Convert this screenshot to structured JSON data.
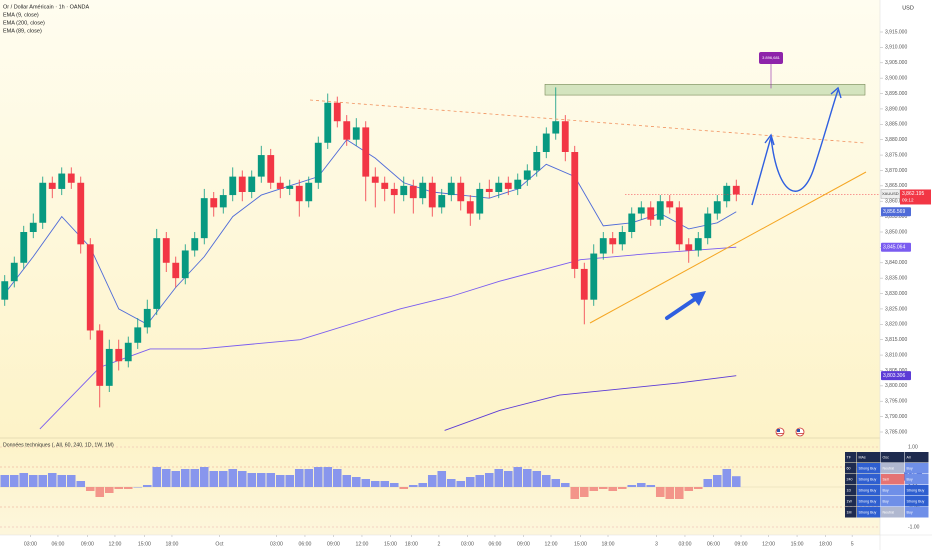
{
  "chart_data": [
    {
      "type": "candlestick",
      "title": "Or / Dollar Américain · 1h · OANDA",
      "currency": "USD",
      "x": [
        0.5,
        1.5,
        2.5,
        3.5,
        4.5,
        5.5,
        6.5,
        7.5,
        8.5,
        9.5,
        10.5,
        11.5,
        12.5,
        13.5,
        14.5,
        15.5,
        16.5,
        17.5,
        18.5,
        19.5,
        20.5,
        21.5,
        22.5,
        23.5,
        24.5,
        25.5,
        26.5,
        27.5,
        28.5,
        29.5,
        30.5,
        31.5,
        32.5,
        33.5,
        34.5,
        35.5,
        36.5,
        37.5,
        38.5,
        39.5,
        40.5,
        41.5,
        42.5,
        43.5,
        44.5,
        45.5,
        46.5,
        47.5,
        48.5,
        49.5,
        50.5,
        51.5,
        52.5,
        53.5,
        54.5,
        55.5,
        56.5,
        57.5,
        58.5,
        59.5,
        60.5,
        61.5,
        62.5,
        63.5,
        64.5,
        65.5,
        66.5,
        67.5,
        68.5,
        69.5,
        70.5,
        71.5,
        72.5,
        73.5,
        74.5,
        75.5,
        76.5,
        77.5
      ],
      "open": [
        3828,
        3834,
        3840,
        3850,
        3853,
        3866,
        3864,
        3869,
        3866,
        3846,
        3818,
        3800,
        3812,
        3808,
        3814,
        3819,
        3825,
        3848,
        3840,
        3835,
        3844,
        3848,
        3861,
        3858,
        3862,
        3868,
        3863,
        3868,
        3875,
        3866,
        3864,
        3865,
        3860,
        3866,
        3879,
        3892,
        3886,
        3880,
        3884,
        3868,
        3866,
        3864,
        3862,
        3865,
        3861,
        3866,
        3858,
        3862,
        3866,
        3860,
        3856,
        3864,
        3863,
        3866,
        3864,
        3867,
        3870,
        3876,
        3882,
        3886,
        3876,
        3838,
        3828,
        3843,
        3848,
        3846,
        3850,
        3856,
        3858,
        3854,
        3860,
        3858,
        3846,
        3844,
        3848,
        3856,
        3860,
        3865
      ],
      "high": [
        3836,
        3842,
        3852,
        3856,
        3868,
        3868,
        3871,
        3871,
        3868,
        3848,
        3820,
        3815,
        3815,
        3816,
        3822,
        3828,
        3851,
        3850,
        3842,
        3846,
        3850,
        3864,
        3863,
        3864,
        3871,
        3870,
        3870,
        3878,
        3877,
        3868,
        3867,
        3867,
        3868,
        3881,
        3895,
        3894,
        3888,
        3887,
        3886,
        3871,
        3868,
        3866,
        3868,
        3867,
        3868,
        3868,
        3864,
        3868,
        3868,
        3862,
        3866,
        3867,
        3868,
        3868,
        3869,
        3872,
        3878,
        3884,
        3897,
        3888,
        3878,
        3840,
        3846,
        3850,
        3850,
        3852,
        3858,
        3860,
        3860,
        3862,
        3862,
        3860,
        3848,
        3850,
        3858,
        3862,
        3866,
        3867
      ],
      "low": [
        3826,
        3832,
        3838,
        3848,
        3851,
        3861,
        3862,
        3864,
        3843,
        3815,
        3793,
        3798,
        3805,
        3806,
        3812,
        3817,
        3823,
        3837,
        3832,
        3833,
        3842,
        3846,
        3855,
        3856,
        3860,
        3860,
        3861,
        3866,
        3864,
        3861,
        3862,
        3855,
        3858,
        3864,
        3877,
        3884,
        3878,
        3878,
        3860,
        3858,
        3860,
        3856,
        3860,
        3856,
        3859,
        3855,
        3856,
        3860,
        3857,
        3852,
        3854,
        3861,
        3861,
        3862,
        3862,
        3865,
        3868,
        3874,
        3880,
        3873,
        3835,
        3820,
        3826,
        3841,
        3843,
        3844,
        3848,
        3854,
        3852,
        3852,
        3856,
        3844,
        3840,
        3842,
        3846,
        3854,
        3858,
        3860
      ],
      "close": [
        3834,
        3840,
        3850,
        3853,
        3866,
        3864,
        3869,
        3866,
        3846,
        3818,
        3800,
        3812,
        3808,
        3814,
        3819,
        3825,
        3848,
        3840,
        3835,
        3844,
        3848,
        3861,
        3858,
        3862,
        3868,
        3863,
        3868,
        3875,
        3866,
        3864,
        3865,
        3860,
        3866,
        3879,
        3892,
        3886,
        3880,
        3884,
        3868,
        3866,
        3864,
        3862,
        3865,
        3861,
        3866,
        3858,
        3862,
        3866,
        3860,
        3856,
        3864,
        3863,
        3866,
        3864,
        3867,
        3870,
        3876,
        3882,
        3886,
        3876,
        3838,
        3828,
        3843,
        3848,
        3846,
        3850,
        3856,
        3858,
        3854,
        3860,
        3858,
        3846,
        3844,
        3848,
        3856,
        3860,
        3865,
        3862.195
      ],
      "up_color": "#089981",
      "down_color": "#f23645",
      "price_label": {
        "symbol": "XAUUSD",
        "value": 3862.195,
        "label": "3,862.195",
        "countdown": "09:12"
      },
      "series": [
        {
          "name": "EMA (9, close)",
          "color": "#4f6bd8",
          "x": [
            0.5,
            3.5,
            6.5,
            9.5,
            12.5,
            15.5,
            18.5,
            21.5,
            24.5,
            27.5,
            30.5,
            33.5,
            36.5,
            39.5,
            42.5,
            45.5,
            48.5,
            51.5,
            54.5,
            57.5,
            60.5,
            63.5,
            66.5,
            69.5,
            72.5,
            75.5,
            77.5
          ],
          "values": [
            3830,
            3842,
            3855,
            3845,
            3825,
            3820,
            3832,
            3842,
            3855,
            3862,
            3865,
            3868,
            3880,
            3874,
            3866,
            3863,
            3862,
            3861,
            3864,
            3872,
            3868,
            3852,
            3853,
            3856,
            3851,
            3853,
            3856.569
          ],
          "price_label": {
            "value": 3856.569,
            "label": "3,856.569"
          }
        },
        {
          "name": "EMA (200, close)",
          "color": "#5c3bd6",
          "x": [
            46.8,
            52.6,
            58.9,
            65.3,
            71.6,
            77.5
          ],
          "values": [
            3785.5,
            3792,
            3797,
            3799,
            3801,
            3803.306
          ],
          "price_label": {
            "value": 3803.306,
            "label": "3,803.306"
          }
        },
        {
          "name": "EMA (89, close)",
          "color": "#7a5cf0",
          "x": [
            4.2,
            10.5,
            15.8,
            21.1,
            31.6,
            42.1,
            47.4,
            52.6,
            61.1,
            68.4,
            77.5
          ],
          "values": [
            3786,
            3806,
            3812,
            3812,
            3815,
            3825,
            3829,
            3834,
            3841,
            3843,
            3845.064
          ],
          "price_label": {
            "value": 3845.064,
            "label": "3,845.064"
          }
        }
      ],
      "zone": {
        "low": 3894.5,
        "high": 3898
      },
      "target": {
        "value": 3896.681,
        "label": "3 896,681"
      },
      "xlim": [
        0,
        92.63
      ],
      "ylim": [
        3783.05,
        3925.4
      ],
      "yticks": [
        {
          "value": 3785,
          "label": "3,785.000"
        },
        {
          "value": 3790,
          "label": "3,790.000"
        },
        {
          "value": 3795,
          "label": "3,795.000"
        },
        {
          "value": 3800,
          "label": "3,800.000"
        },
        {
          "value": 3805,
          "label": "3,805.000"
        },
        {
          "value": 3810,
          "label": "3,810.000"
        },
        {
          "value": 3815,
          "label": "3,815.000"
        },
        {
          "value": 3820,
          "label": "3,820.000"
        },
        {
          "value": 3825,
          "label": "3,825.000"
        },
        {
          "value": 3830,
          "label": "3,830.000"
        },
        {
          "value": 3835,
          "label": "3,835.000"
        },
        {
          "value": 3840,
          "label": "3,840.000"
        },
        {
          "value": 3845,
          "label": "3,845.000"
        },
        {
          "value": 3850,
          "label": "3,850.000"
        },
        {
          "value": 3855,
          "label": "3,855.000"
        },
        {
          "value": 3860,
          "label": "3,860.000"
        },
        {
          "value": 3865,
          "label": "3,865.000"
        },
        {
          "value": 3870,
          "label": "3,870.000"
        },
        {
          "value": 3875,
          "label": "3,875.000"
        },
        {
          "value": 3880,
          "label": "3,880.000"
        },
        {
          "value": 3885,
          "label": "3,885.000"
        },
        {
          "value": 3890,
          "label": "3,890.000"
        },
        {
          "value": 3895,
          "label": "3,895.000"
        },
        {
          "value": 3900,
          "label": "3,900.000"
        },
        {
          "value": 3905,
          "label": "3,905.000"
        },
        {
          "value": 3910,
          "label": "3,910.000"
        },
        {
          "value": 3915,
          "label": "3,915.000"
        }
      ],
      "xticks": [
        {
          "value": 3.2,
          "label": "03:00"
        },
        {
          "value": 6.1,
          "label": "06:00"
        },
        {
          "value": 9.2,
          "label": "09:00"
        },
        {
          "value": 12.1,
          "label": "12:00"
        },
        {
          "value": 15.2,
          "label": "15:00"
        },
        {
          "value": 18.1,
          "label": "18:00"
        },
        {
          "value": 23.1,
          "label": "Oct"
        },
        {
          "value": 29.1,
          "label": "03:00"
        },
        {
          "value": 32.1,
          "label": "06:00"
        },
        {
          "value": 35.1,
          "label": "09:00"
        },
        {
          "value": 38.1,
          "label": "12:00"
        },
        {
          "value": 41.1,
          "label": "15:00"
        },
        {
          "value": 43.3,
          "label": "18:00"
        },
        {
          "value": 46.2,
          "label": "2"
        },
        {
          "value": 49.2,
          "label": "03:00"
        },
        {
          "value": 52.1,
          "label": "06:00"
        },
        {
          "value": 55.1,
          "label": "09:00"
        },
        {
          "value": 58,
          "label": "12:00"
        },
        {
          "value": 61.1,
          "label": "15:00"
        },
        {
          "value": 64,
          "label": "18:00"
        },
        {
          "value": 69.1,
          "label": "3"
        },
        {
          "value": 72.1,
          "label": "03:00"
        },
        {
          "value": 75.1,
          "label": "06:00"
        },
        {
          "value": 78,
          "label": "09:00"
        },
        {
          "value": 80.9,
          "label": "12:00"
        },
        {
          "value": 83.9,
          "label": "15:00"
        },
        {
          "value": 86.9,
          "label": "18:00"
        },
        {
          "value": 89.7,
          "label": "5"
        }
      ]
    },
    {
      "type": "bar",
      "title": "Données techniques (, All, 60, 240, 1D, 1W, 1M)",
      "x": [
        0.5,
        1.5,
        2.5,
        3.5,
        4.5,
        5.5,
        6.5,
        7.5,
        8.5,
        9.5,
        10.5,
        11.5,
        12.5,
        13.5,
        14.5,
        15.5,
        16.5,
        17.5,
        18.5,
        19.5,
        20.5,
        21.5,
        22.5,
        23.5,
        24.5,
        25.5,
        26.5,
        27.5,
        28.5,
        29.5,
        30.5,
        31.5,
        32.5,
        33.5,
        34.5,
        35.5,
        36.5,
        37.5,
        38.5,
        39.5,
        40.5,
        41.5,
        42.5,
        43.5,
        44.5,
        45.5,
        46.5,
        47.5,
        48.5,
        49.5,
        50.5,
        51.5,
        52.5,
        53.5,
        54.5,
        55.5,
        56.5,
        57.5,
        58.5,
        59.5,
        60.5,
        61.5,
        62.5,
        63.5,
        64.5,
        65.5,
        66.5,
        67.5,
        68.5,
        69.5,
        70.5,
        71.5,
        72.5,
        73.5,
        74.5,
        75.5,
        76.5,
        77.5
      ],
      "values": [
        0.3,
        0.3,
        0.35,
        0.3,
        0.3,
        0.35,
        0.3,
        0.3,
        0.15,
        -0.1,
        -0.25,
        -0.15,
        -0.05,
        -0.05,
        0,
        0.05,
        0.5,
        0.45,
        0.4,
        0.45,
        0.45,
        0.5,
        0.4,
        0.4,
        0.45,
        0.4,
        0.35,
        0.35,
        0.35,
        0.3,
        0.3,
        0.45,
        0.45,
        0.5,
        0.5,
        0.45,
        0.3,
        0.25,
        0.2,
        0.15,
        0.15,
        0.1,
        -0.05,
        0.05,
        0.1,
        0.3,
        0.4,
        0.2,
        0.15,
        0.25,
        0.3,
        0.35,
        0.45,
        0.4,
        0.5,
        0.45,
        0.4,
        0.3,
        0.2,
        0.1,
        -0.3,
        -0.25,
        -0.1,
        -0.05,
        -0.1,
        -0.05,
        0.05,
        0.1,
        0.05,
        -0.25,
        -0.3,
        -0.3,
        -0.1,
        -0.05,
        0.2,
        0.3,
        0.45,
        0.27
      ],
      "last_label": {
        "value": 0.27,
        "label": "0.27"
      },
      "pos_color": "#7b8cf0",
      "neg_color": "#f28b82",
      "xlim": [
        0,
        92.63
      ],
      "ylim": [
        -1.2,
        1.225
      ],
      "yticks": [
        {
          "value": 1,
          "label": "1.00"
        },
        {
          "value": 0.5,
          "label": "0.50"
        },
        {
          "value": 0,
          "label": "0.00"
        },
        {
          "value": -0.5,
          "label": "-0.50"
        },
        {
          "value": -1,
          "label": "-1.00"
        }
      ]
    }
  ],
  "table": {
    "header": [
      "TF",
      "MAs",
      "Osc",
      "All"
    ],
    "rows": [
      [
        "60",
        "Strong Buy",
        "Neutral",
        "Buy"
      ],
      [
        "240",
        "Strong Buy",
        "Sell",
        "Buy"
      ],
      [
        "1D",
        "Strong Buy",
        "Buy",
        "Strong Buy"
      ],
      [
        "1W",
        "Strong Buy",
        "Buy",
        "Strong Buy"
      ],
      [
        "1M",
        "Strong Buy",
        "Neutral",
        "Buy"
      ]
    ]
  }
}
